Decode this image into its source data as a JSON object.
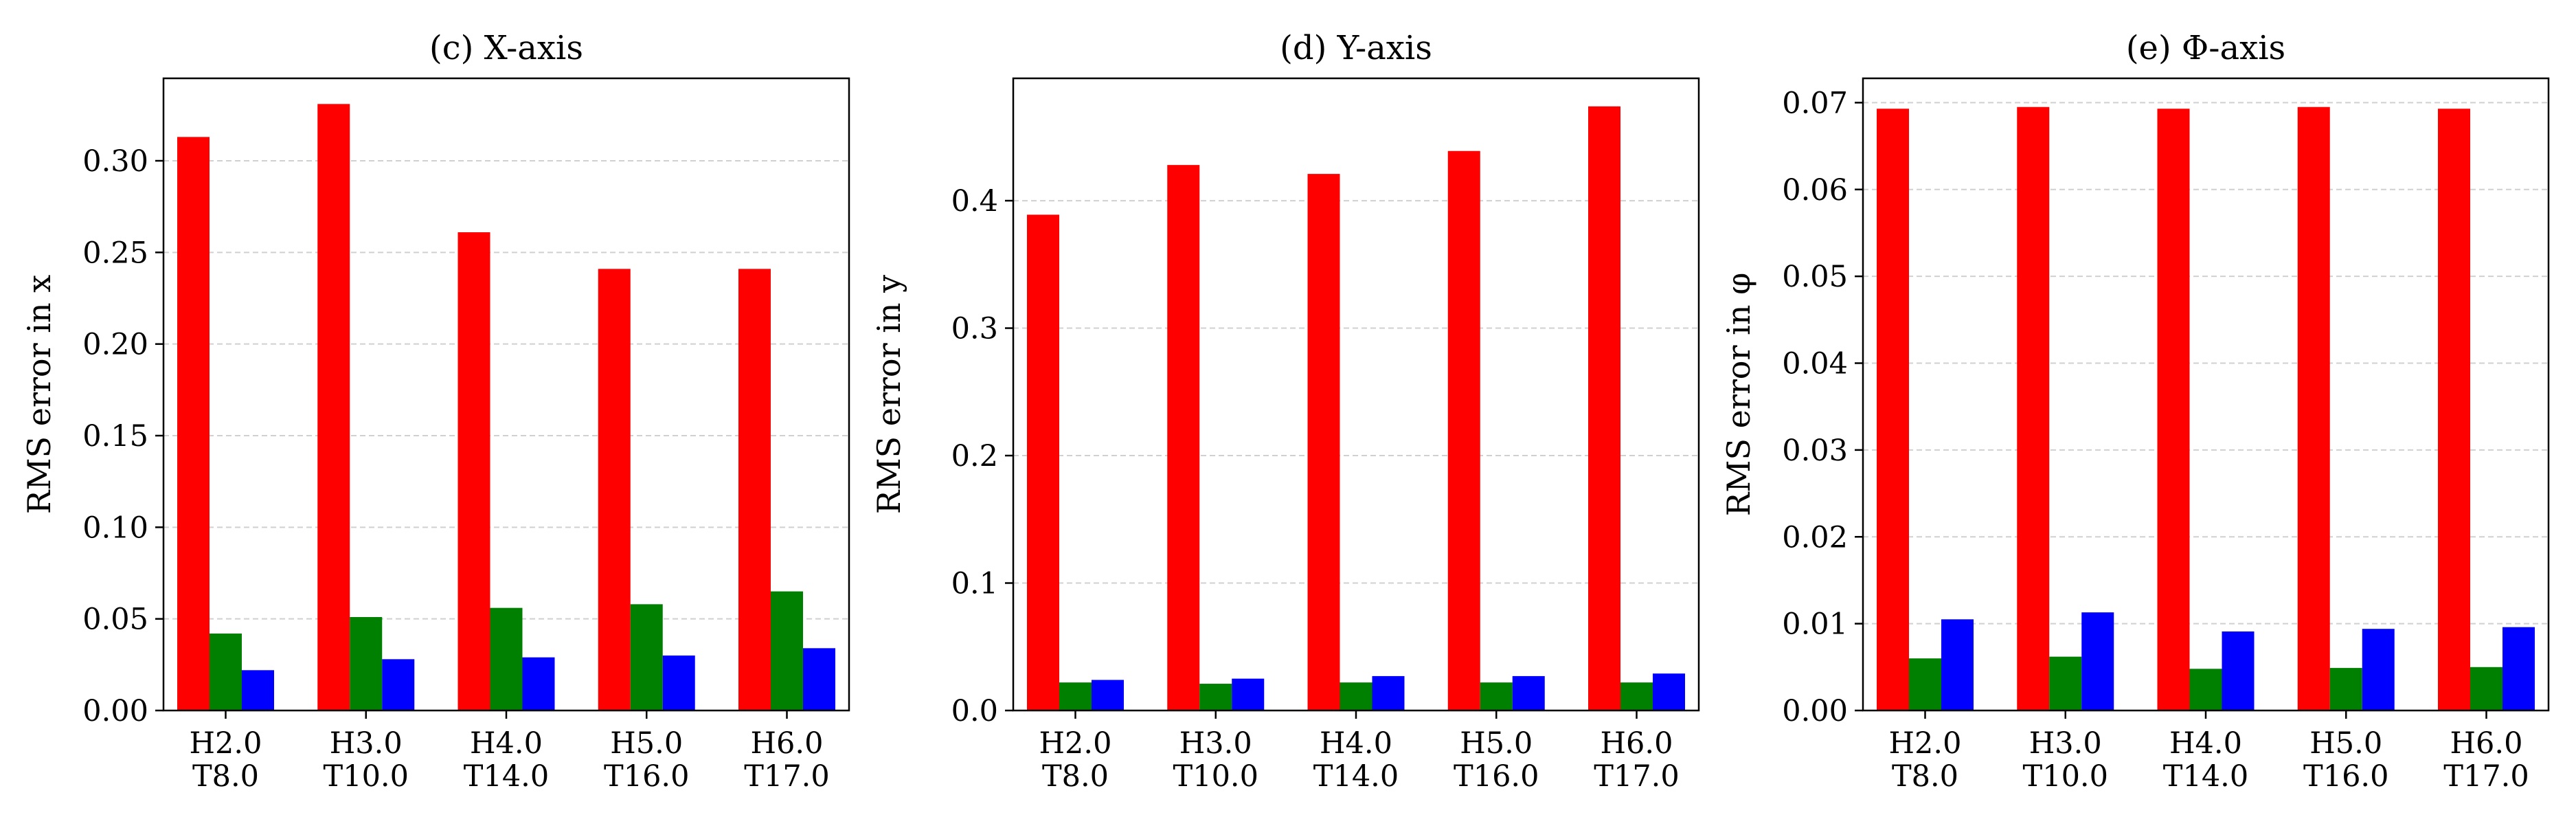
{
  "chart_data": [
    {
      "type": "bar",
      "title": "(c) X-axis",
      "ylabel": "RMS error in x",
      "xlabel": "",
      "categories": [
        [
          "H2.0",
          "T8.0"
        ],
        [
          "H3.0",
          "T10.0"
        ],
        [
          "H4.0",
          "T14.0"
        ],
        [
          "H5.0",
          "T16.0"
        ],
        [
          "H6.0",
          "T17.0"
        ]
      ],
      "ylim": [
        0,
        0.345
      ],
      "yticks": [
        "0.00",
        "0.05",
        "0.10",
        "0.15",
        "0.20",
        "0.25",
        "0.30"
      ],
      "grid": "y, dashed",
      "series": [
        {
          "color": "#ff0000",
          "values": [
            0.313,
            0.331,
            0.261,
            0.241,
            0.241
          ]
        },
        {
          "color": "#008000",
          "values": [
            0.042,
            0.051,
            0.056,
            0.058,
            0.065
          ]
        },
        {
          "color": "#0000ff",
          "values": [
            0.022,
            0.028,
            0.029,
            0.03,
            0.034
          ]
        }
      ]
    },
    {
      "type": "bar",
      "title": "(d) Y-axis",
      "ylabel": "RMS error in y",
      "xlabel": "",
      "categories": [
        [
          "H2.0",
          "T8.0"
        ],
        [
          "H3.0",
          "T10.0"
        ],
        [
          "H4.0",
          "T14.0"
        ],
        [
          "H5.0",
          "T16.0"
        ],
        [
          "H6.0",
          "T17.0"
        ]
      ],
      "ylim": [
        0,
        0.496
      ],
      "yticks": [
        "0.0",
        "0.1",
        "0.2",
        "0.3",
        "0.4"
      ],
      "grid": "y, dashed",
      "series": [
        {
          "color": "#ff0000",
          "values": [
            0.389,
            0.428,
            0.421,
            0.439,
            0.474
          ]
        },
        {
          "color": "#008000",
          "values": [
            0.022,
            0.021,
            0.022,
            0.022,
            0.022
          ]
        },
        {
          "color": "#0000ff",
          "values": [
            0.024,
            0.025,
            0.027,
            0.027,
            0.029
          ]
        }
      ]
    },
    {
      "type": "bar",
      "title": "(e) Φ-axis",
      "ylabel": "RMS error in φ",
      "xlabel": "",
      "categories": [
        [
          "H2.0",
          "T8.0"
        ],
        [
          "H3.0",
          "T10.0"
        ],
        [
          "H4.0",
          "T14.0"
        ],
        [
          "H5.0",
          "T16.0"
        ],
        [
          "H6.0",
          "T17.0"
        ]
      ],
      "ylim": [
        0,
        0.0728
      ],
      "yticks": [
        "0.00",
        "0.01",
        "0.02",
        "0.03",
        "0.04",
        "0.05",
        "0.06",
        "0.07"
      ],
      "grid": "y, dashed",
      "series": [
        {
          "color": "#ff0000",
          "values": [
            0.0693,
            0.0695,
            0.0693,
            0.0695,
            0.0693
          ]
        },
        {
          "color": "#008000",
          "values": [
            0.006,
            0.0062,
            0.0048,
            0.0049,
            0.005
          ]
        },
        {
          "color": "#0000ff",
          "values": [
            0.0105,
            0.0113,
            0.0091,
            0.0094,
            0.0096
          ]
        }
      ]
    }
  ]
}
